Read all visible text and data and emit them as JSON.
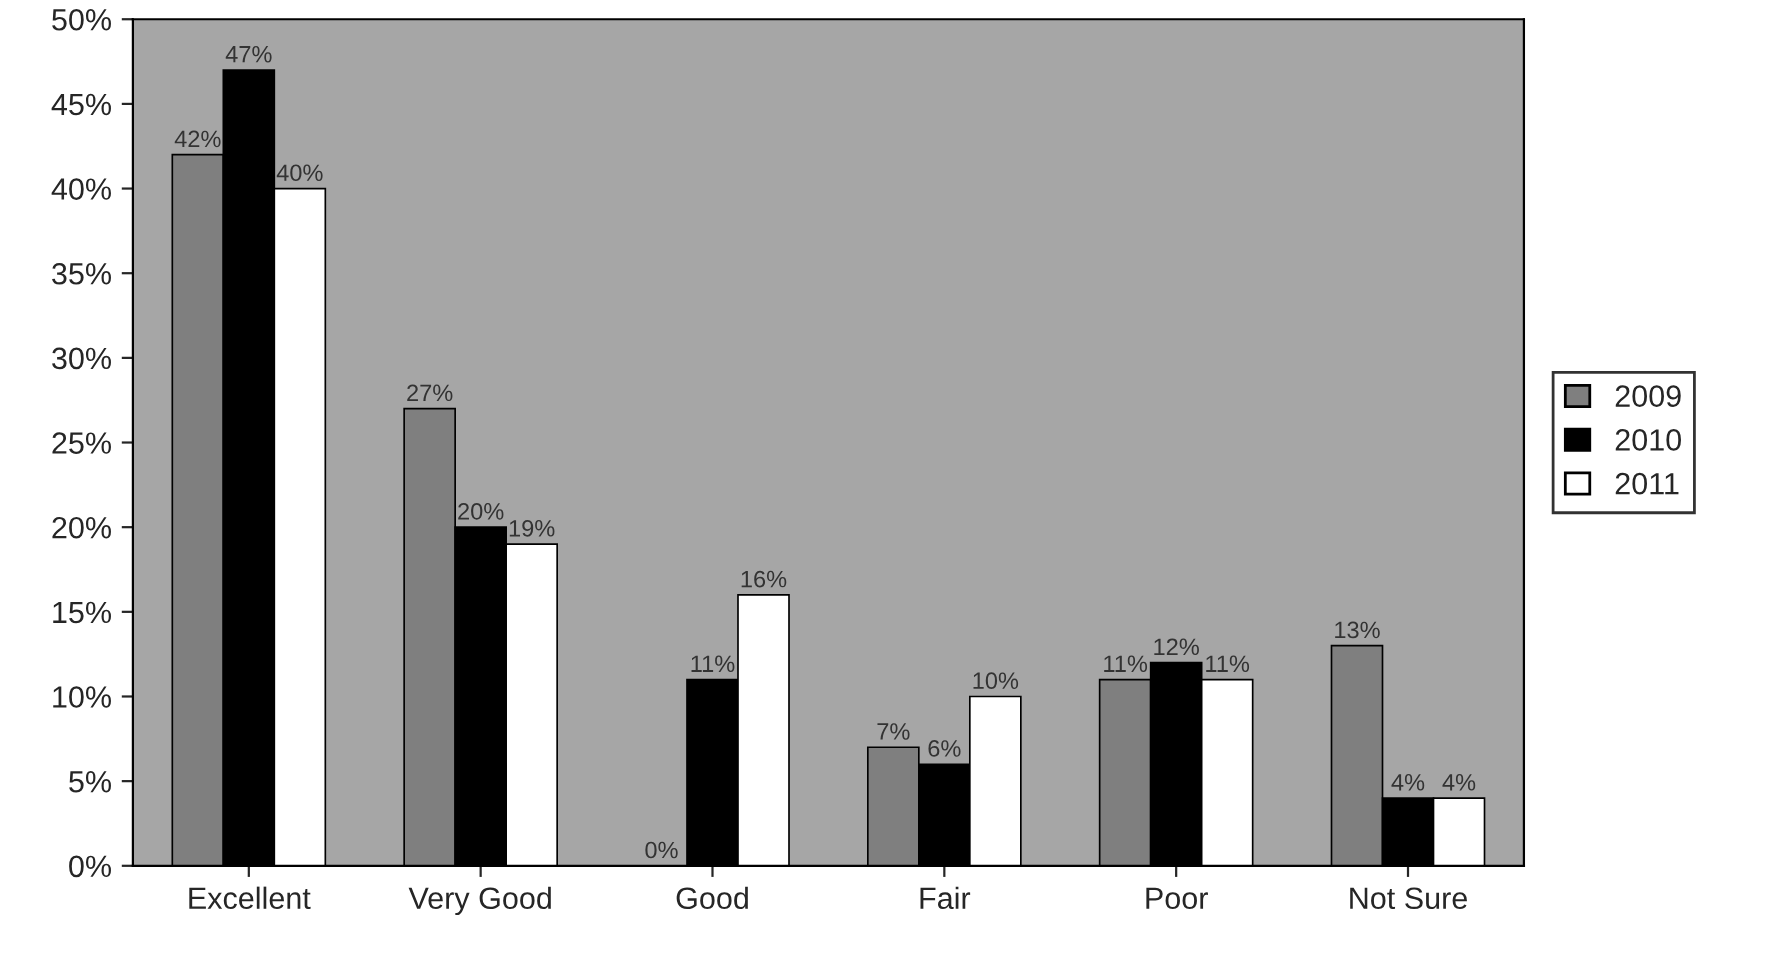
{
  "chart_data": {
    "type": "bar",
    "categories": [
      "Excellent",
      "Very Good",
      "Good",
      "Fair",
      "Poor",
      "Not Sure"
    ],
    "series": [
      {
        "name": "2009",
        "color": "#7f7f7f",
        "values": [
          42,
          27,
          0,
          7,
          11,
          13
        ],
        "value_labels": [
          "42%",
          "27%",
          "0%",
          "7%",
          "11%",
          "13%"
        ]
      },
      {
        "name": "2010",
        "color": "#000000",
        "values": [
          47,
          20,
          11,
          6,
          12,
          4
        ],
        "value_labels": [
          "47%",
          "20%",
          "11%",
          "6%",
          "12%",
          "4%"
        ]
      },
      {
        "name": "2011",
        "color": "#ffffff",
        "values": [
          40,
          19,
          16,
          10,
          11,
          4
        ],
        "value_labels": [
          "40%",
          "19%",
          "16%",
          "10%",
          "11%",
          "4%"
        ]
      }
    ],
    "ylim": [
      0,
      50
    ],
    "yticks": [
      {
        "value": 0,
        "label": "0%"
      },
      {
        "value": 5,
        "label": "5%"
      },
      {
        "value": 10,
        "label": "10%"
      },
      {
        "value": 15,
        "label": "15%"
      },
      {
        "value": 20,
        "label": "20%"
      },
      {
        "value": 25,
        "label": "25%"
      },
      {
        "value": 30,
        "label": "30%"
      },
      {
        "value": 35,
        "label": "35%"
      },
      {
        "value": 40,
        "label": "40%"
      },
      {
        "value": 45,
        "label": "45%"
      },
      {
        "value": 50,
        "label": "50%"
      }
    ],
    "grid": false,
    "legend": "right"
  }
}
